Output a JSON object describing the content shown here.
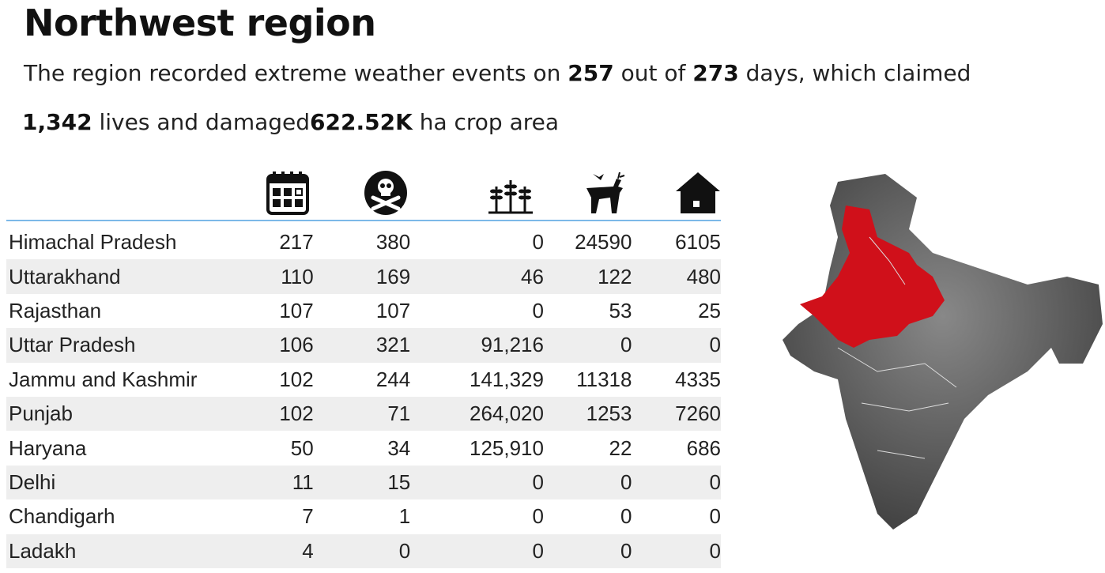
{
  "title": "Northwest region",
  "summary": {
    "t1": "The region recorded extreme weather events on",
    "days_events": "257",
    "t2": "out of",
    "days_total": "273",
    "t3": "days, which claimed",
    "lives": "1,342",
    "t4": "lives and damaged",
    "crop": "622.52K",
    "t5": "ha crop area"
  },
  "columns": [
    "calendar-icon",
    "skull-crossbones-icon",
    "crops-icon",
    "animals-icon",
    "house-icon"
  ],
  "colors": {
    "highlight": "#d0101a",
    "header_rule": "#7cb9e8",
    "row_alt": "#eeeeee"
  },
  "rows": [
    {
      "state": "Himachal Pradesh",
      "days": "217",
      "deaths": "380",
      "crop": "0",
      "animals": "24590",
      "houses": "6105"
    },
    {
      "state": "Uttarakhand",
      "days": "110",
      "deaths": "169",
      "crop": "46",
      "animals": "122",
      "houses": "480"
    },
    {
      "state": "Rajasthan",
      "days": "107",
      "deaths": "107",
      "crop": "0",
      "animals": "53",
      "houses": "25"
    },
    {
      "state": "Uttar Pradesh",
      "days": "106",
      "deaths": "321",
      "crop": "91,216",
      "animals": "0",
      "houses": "0"
    },
    {
      "state": "Jammu and Kashmir",
      "days": "102",
      "deaths": "244",
      "crop": "141,329",
      "animals": "11318",
      "houses": "4335"
    },
    {
      "state": "Punjab",
      "days": "102",
      "deaths": "71",
      "crop": "264,020",
      "animals": "1253",
      "houses": "7260"
    },
    {
      "state": "Haryana",
      "days": "50",
      "deaths": "34",
      "crop": "125,910",
      "animals": "22",
      "houses": "686"
    },
    {
      "state": "Delhi",
      "days": "11",
      "deaths": "15",
      "crop": "0",
      "animals": "0",
      "houses": "0"
    },
    {
      "state": "Chandigarh",
      "days": "7",
      "deaths": "1",
      "crop": "0",
      "animals": "0",
      "houses": "0"
    },
    {
      "state": "Ladakh",
      "days": "4",
      "deaths": "0",
      "crop": "0",
      "animals": "0",
      "houses": "0"
    }
  ]
}
